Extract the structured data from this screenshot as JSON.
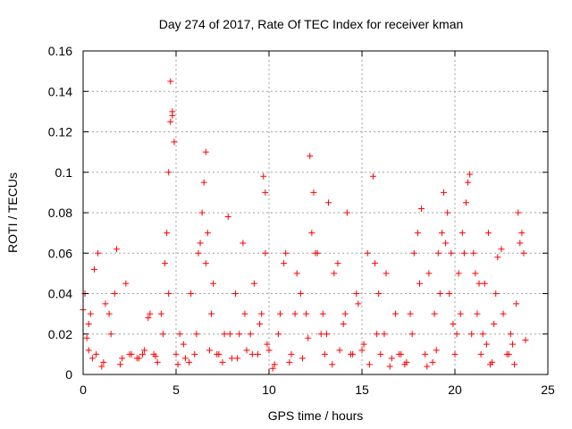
{
  "chart_data": {
    "type": "scatter",
    "title": "Day 274 of 2017, Rate Of TEC Index for receiver kman",
    "xlabel": "GPS time / hours",
    "ylabel": "ROTI / TECUs",
    "xlim": [
      0,
      25
    ],
    "ylim": [
      0,
      0.16
    ],
    "xticks": [
      0,
      5,
      10,
      15,
      20,
      25
    ],
    "xtick_labels": [
      "0",
      "5",
      "10",
      "15",
      "20",
      "25"
    ],
    "yticks": [
      0,
      0.02,
      0.04,
      0.06,
      0.08,
      0.1,
      0.12,
      0.14,
      0.16
    ],
    "ytick_labels": [
      "0",
      "0.02",
      "0.04",
      "0.06",
      "0.08",
      "0.1",
      "0.12",
      "0.14",
      "0.16"
    ],
    "grid": true,
    "marker": "+",
    "color": "#ff0000",
    "series": [
      {
        "x": [
          0.0,
          0.1,
          0.2,
          0.3,
          0.4,
          0.5,
          0.6,
          0.8,
          1.0,
          1.2,
          1.5,
          1.8,
          2.0,
          2.3,
          2.6,
          3.0,
          3.3,
          3.6,
          3.8,
          4.0,
          4.2,
          4.4,
          4.5,
          4.6,
          4.7,
          4.8,
          4.9,
          5.0,
          5.2,
          5.5,
          5.8,
          6.0,
          6.2,
          6.4,
          6.5,
          6.6,
          6.7,
          6.8,
          7.0,
          7.3,
          7.6,
          7.8,
          8.0,
          8.2,
          8.4,
          8.6,
          8.8,
          9.0,
          9.2,
          9.4,
          9.6,
          9.7,
          9.8,
          9.9,
          10.0,
          10.3,
          10.6,
          10.9,
          11.2,
          11.5,
          11.8,
          12.0,
          12.2,
          12.4,
          12.6,
          12.8,
          13.0,
          13.2,
          13.5,
          13.8,
          14.0,
          14.2,
          14.5,
          14.7,
          15.0,
          15.3,
          15.6,
          15.8,
          16.0,
          16.3,
          16.6,
          17.0,
          17.3,
          17.6,
          17.8,
          18.0,
          18.2,
          18.4,
          18.6,
          18.8,
          19.0,
          19.2,
          19.4,
          19.6,
          19.8,
          20.0,
          20.2,
          20.4,
          20.6,
          20.8,
          21.0,
          21.2,
          21.4,
          21.6,
          21.8,
          22.0,
          22.2,
          22.5,
          22.8,
          23.0,
          23.2,
          23.4,
          23.6,
          23.8,
          0.3,
          0.7,
          1.1,
          1.4,
          1.7,
          2.1,
          2.5,
          2.9,
          3.2,
          3.5,
          3.9,
          4.3,
          4.6,
          4.7,
          4.8,
          5.1,
          5.4,
          5.7,
          6.1,
          6.3,
          6.6,
          6.9,
          7.2,
          7.5,
          7.9,
          8.3,
          8.7,
          9.1,
          9.5,
          9.8,
          10.2,
          10.5,
          10.8,
          11.1,
          11.4,
          11.7,
          12.1,
          12.3,
          12.5,
          12.9,
          13.1,
          13.4,
          13.7,
          14.1,
          14.4,
          14.8,
          15.1,
          15.4,
          15.7,
          15.9,
          16.2,
          16.5,
          16.8,
          17.1,
          17.4,
          17.7,
          18.1,
          18.5,
          18.9,
          19.1,
          19.3,
          19.5,
          19.7,
          19.9,
          20.1,
          20.3,
          20.5,
          20.7,
          20.9,
          21.1,
          21.3,
          21.5,
          21.7,
          21.9,
          22.1,
          22.3,
          22.6,
          22.9,
          23.1,
          23.3,
          23.5,
          23.7
        ],
        "y": [
          0.032,
          0.04,
          0.018,
          0.012,
          0.03,
          0.008,
          0.052,
          0.06,
          0.004,
          0.035,
          0.02,
          0.062,
          0.005,
          0.045,
          0.01,
          0.008,
          0.012,
          0.03,
          0.01,
          0.006,
          0.03,
          0.055,
          0.07,
          0.1,
          0.145,
          0.128,
          0.115,
          0.01,
          0.02,
          0.008,
          0.04,
          0.01,
          0.06,
          0.08,
          0.095,
          0.11,
          0.07,
          0.012,
          0.045,
          0.01,
          0.02,
          0.078,
          0.008,
          0.04,
          0.02,
          0.065,
          0.012,
          0.02,
          0.045,
          0.01,
          0.03,
          0.098,
          0.09,
          0.015,
          0.012,
          0.005,
          0.03,
          0.06,
          0.01,
          0.05,
          0.008,
          0.03,
          0.108,
          0.09,
          0.06,
          0.02,
          0.01,
          0.085,
          0.05,
          0.012,
          0.025,
          0.08,
          0.01,
          0.04,
          0.012,
          0.06,
          0.098,
          0.02,
          0.01,
          0.05,
          0.008,
          0.01,
          0.005,
          0.03,
          0.06,
          0.07,
          0.082,
          0.01,
          0.05,
          0.006,
          0.012,
          0.04,
          0.09,
          0.08,
          0.06,
          0.01,
          0.05,
          0.07,
          0.085,
          0.099,
          0.06,
          0.03,
          0.01,
          0.045,
          0.07,
          0.006,
          0.04,
          0.062,
          0.01,
          0.02,
          0.005,
          0.08,
          0.07,
          0.017,
          0.025,
          0.01,
          0.006,
          0.03,
          0.04,
          0.008,
          0.01,
          0.008,
          0.01,
          0.028,
          0.009,
          0.02,
          0.04,
          0.125,
          0.13,
          0.005,
          0.015,
          0.006,
          0.02,
          0.065,
          0.055,
          0.03,
          0.01,
          0.006,
          0.02,
          0.008,
          0.03,
          0.01,
          0.025,
          0.06,
          0.003,
          0.02,
          0.055,
          0.006,
          0.03,
          0.04,
          0.018,
          0.07,
          0.06,
          0.03,
          0.02,
          0.005,
          0.055,
          0.03,
          0.01,
          0.035,
          0.015,
          0.005,
          0.055,
          0.04,
          0.02,
          0.004,
          0.03,
          0.01,
          0.006,
          0.02,
          0.045,
          0.004,
          0.03,
          0.06,
          0.07,
          0.065,
          0.04,
          0.025,
          0.02,
          0.03,
          0.06,
          0.095,
          0.02,
          0.05,
          0.045,
          0.02,
          0.015,
          0.005,
          0.025,
          0.058,
          0.03,
          0.01,
          0.015,
          0.035,
          0.065,
          0.06
        ]
      }
    ]
  }
}
